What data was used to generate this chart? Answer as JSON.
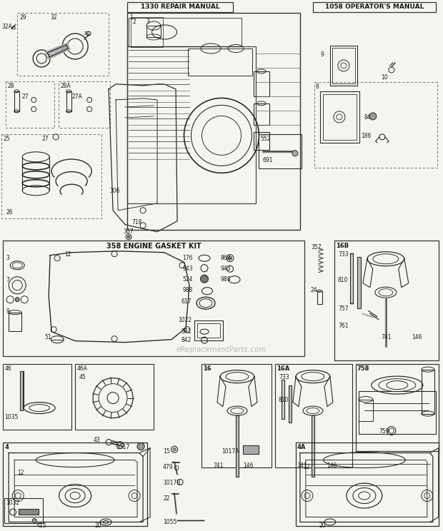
{
  "bg_color": "#f5f5f0",
  "line_color": "#2a2a2a",
  "text_color": "#1a1a1a",
  "repair_manual": "1330 REPAIR MANUAL",
  "operator_manual": "1058 OPERATOR'S MANUAL",
  "gasket_kit": "358 ENGINE GASKET KIT",
  "watermark": "eReplacementParts.com"
}
